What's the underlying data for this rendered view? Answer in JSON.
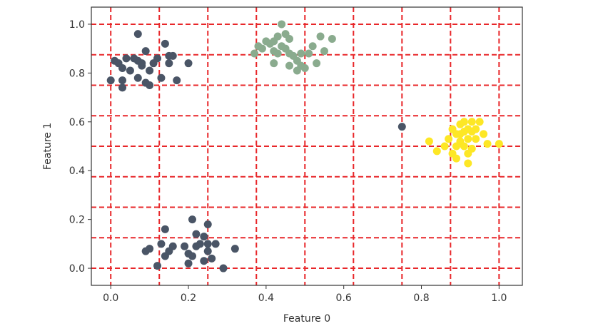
{
  "chart_data": {
    "type": "scatter",
    "xlabel": "Feature 0",
    "ylabel": "Feature 1",
    "xlim": [
      -0.05,
      1.06
    ],
    "ylim": [
      -0.07,
      1.07
    ],
    "x_ticks": [
      0.0,
      0.2,
      0.4,
      0.6,
      0.8,
      1.0
    ],
    "x_tick_labels": [
      "0.0",
      "0.2",
      "0.4",
      "0.6",
      "0.8",
      "1.0"
    ],
    "y_ticks": [
      0.0,
      0.2,
      0.4,
      0.6,
      0.8,
      1.0
    ],
    "y_tick_labels": [
      "0.0",
      "0.2",
      "0.4",
      "0.6",
      "0.8",
      "1.0"
    ],
    "grid": {
      "style": "dashed",
      "color": "#e8272a",
      "x_lines": [
        0.0,
        0.125,
        0.25,
        0.375,
        0.5,
        0.625,
        0.75,
        0.875,
        1.0
      ],
      "y_lines": [
        0.0,
        0.125,
        0.25,
        0.375,
        0.5,
        0.625,
        0.75,
        0.875,
        1.0
      ]
    },
    "series": [
      {
        "color": "#4a5566",
        "points": [
          [
            0.0,
            0.77
          ],
          [
            0.01,
            0.85
          ],
          [
            0.02,
            0.84
          ],
          [
            0.03,
            0.82
          ],
          [
            0.03,
            0.77
          ],
          [
            0.03,
            0.74
          ],
          [
            0.04,
            0.86
          ],
          [
            0.06,
            0.86
          ],
          [
            0.07,
            0.96
          ],
          [
            0.07,
            0.85
          ],
          [
            0.07,
            0.78
          ],
          [
            0.08,
            0.83
          ],
          [
            0.09,
            0.89
          ],
          [
            0.09,
            0.76
          ],
          [
            0.1,
            0.75
          ],
          [
            0.1,
            0.81
          ],
          [
            0.11,
            0.84
          ],
          [
            0.12,
            0.86
          ],
          [
            0.13,
            0.78
          ],
          [
            0.14,
            0.92
          ],
          [
            0.15,
            0.87
          ],
          [
            0.15,
            0.84
          ],
          [
            0.16,
            0.87
          ],
          [
            0.17,
            0.77
          ],
          [
            0.2,
            0.84
          ],
          [
            0.08,
            0.84
          ],
          [
            0.05,
            0.81
          ],
          [
            0.09,
            0.07
          ],
          [
            0.1,
            0.08
          ],
          [
            0.12,
            0.01
          ],
          [
            0.13,
            0.1
          ],
          [
            0.14,
            0.05
          ],
          [
            0.14,
            0.16
          ],
          [
            0.15,
            0.07
          ],
          [
            0.16,
            0.09
          ],
          [
            0.19,
            0.09
          ],
          [
            0.2,
            0.02
          ],
          [
            0.2,
            0.06
          ],
          [
            0.21,
            0.2
          ],
          [
            0.22,
            0.14
          ],
          [
            0.22,
            0.09
          ],
          [
            0.23,
            0.1
          ],
          [
            0.24,
            0.03
          ],
          [
            0.24,
            0.13
          ],
          [
            0.25,
            0.18
          ],
          [
            0.25,
            0.07
          ],
          [
            0.25,
            0.1
          ],
          [
            0.26,
            0.04
          ],
          [
            0.27,
            0.1
          ],
          [
            0.29,
            0.0
          ],
          [
            0.32,
            0.08
          ],
          [
            0.21,
            0.05
          ],
          [
            0.75,
            0.58
          ]
        ]
      },
      {
        "color": "#8aab8e",
        "points": [
          [
            0.37,
            0.88
          ],
          [
            0.38,
            0.91
          ],
          [
            0.39,
            0.9
          ],
          [
            0.4,
            0.93
          ],
          [
            0.41,
            0.92
          ],
          [
            0.42,
            0.93
          ],
          [
            0.42,
            0.89
          ],
          [
            0.42,
            0.84
          ],
          [
            0.43,
            0.95
          ],
          [
            0.43,
            0.88
          ],
          [
            0.44,
            1.0
          ],
          [
            0.44,
            0.91
          ],
          [
            0.45,
            0.96
          ],
          [
            0.45,
            0.9
          ],
          [
            0.46,
            0.94
          ],
          [
            0.46,
            0.88
          ],
          [
            0.46,
            0.83
          ],
          [
            0.47,
            0.87
          ],
          [
            0.48,
            0.85
          ],
          [
            0.49,
            0.88
          ],
          [
            0.49,
            0.83
          ],
          [
            0.5,
            0.82
          ],
          [
            0.51,
            0.88
          ],
          [
            0.52,
            0.91
          ],
          [
            0.53,
            0.84
          ],
          [
            0.54,
            0.95
          ],
          [
            0.55,
            0.89
          ],
          [
            0.57,
            0.94
          ],
          [
            0.48,
            0.81
          ]
        ]
      },
      {
        "color": "#fde725",
        "points": [
          [
            0.82,
            0.52
          ],
          [
            0.84,
            0.48
          ],
          [
            0.86,
            0.5
          ],
          [
            0.87,
            0.53
          ],
          [
            0.88,
            0.47
          ],
          [
            0.88,
            0.57
          ],
          [
            0.89,
            0.5
          ],
          [
            0.89,
            0.45
          ],
          [
            0.9,
            0.55
          ],
          [
            0.9,
            0.52
          ],
          [
            0.9,
            0.59
          ],
          [
            0.91,
            0.6
          ],
          [
            0.91,
            0.56
          ],
          [
            0.91,
            0.5
          ],
          [
            0.92,
            0.57
          ],
          [
            0.92,
            0.53
          ],
          [
            0.92,
            0.43
          ],
          [
            0.93,
            0.6
          ],
          [
            0.93,
            0.56
          ],
          [
            0.93,
            0.49
          ],
          [
            0.94,
            0.53
          ],
          [
            0.94,
            0.57
          ],
          [
            0.95,
            0.6
          ],
          [
            0.96,
            0.55
          ],
          [
            0.97,
            0.51
          ],
          [
            1.0,
            0.51
          ],
          [
            0.89,
            0.55
          ],
          [
            0.92,
            0.47
          ]
        ]
      }
    ]
  }
}
